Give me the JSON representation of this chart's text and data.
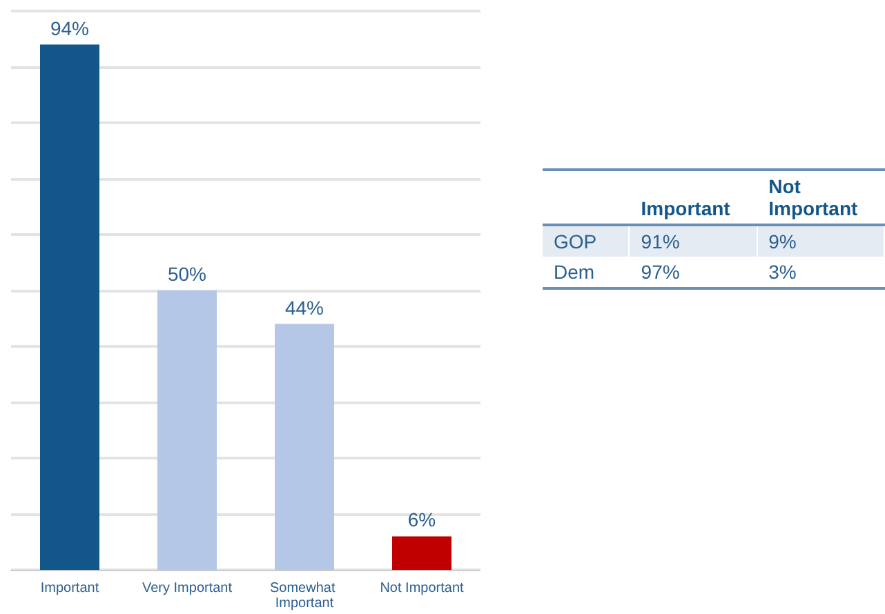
{
  "chart_data": [
    {
      "type": "bar",
      "categories": [
        "Important",
        "Very Important",
        "Somewhat Important",
        "Not Important"
      ],
      "values": [
        94,
        50,
        44,
        6
      ],
      "colors": [
        "#13578a",
        "#b4c7e7",
        "#b4c7e7",
        "#c00000"
      ],
      "value_labels": [
        "94%",
        "50%",
        "44%",
        "6%"
      ],
      "ylim": [
        0,
        100
      ],
      "yticks": [
        0,
        10,
        20,
        30,
        40,
        50,
        60,
        70,
        80,
        90,
        100
      ],
      "grid": "y",
      "tick_labels": "x"
    },
    {
      "type": "other",
      "categories": [
        "Important",
        "Not Important"
      ],
      "y_categories": [
        "GOP",
        "Dem"
      ],
      "cells": [
        [
          "91%",
          "9%"
        ],
        [
          "97%",
          "3%"
        ]
      ]
    }
  ]
}
